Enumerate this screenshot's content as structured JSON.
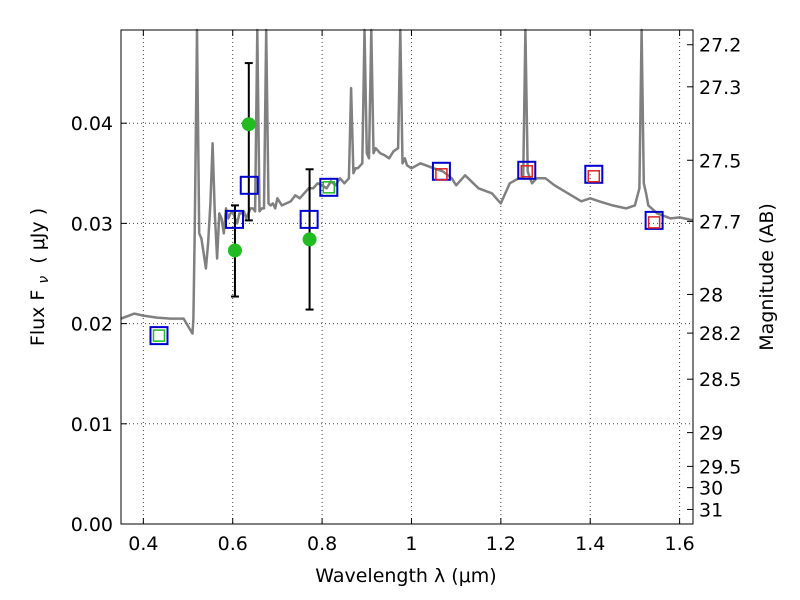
{
  "chart_data": {
    "type": "line",
    "xlabel": "Wavelength  λ (μm)",
    "ylabel": "Flux  F",
    "ylabel_sub": "ν",
    "ylabel_unit": "( μJy )",
    "y2label": "Magnitude (AB)",
    "xlim": [
      0.35,
      1.63
    ],
    "ylim": [
      0.0,
      0.0493
    ],
    "grid": true,
    "x_ticks": [
      {
        "v": 0.4,
        "label": "0.4"
      },
      {
        "v": 0.6,
        "label": "0.6"
      },
      {
        "v": 0.8,
        "label": "0.8"
      },
      {
        "v": 1.0,
        "label": "1"
      },
      {
        "v": 1.2,
        "label": "1.2"
      },
      {
        "v": 1.4,
        "label": "1.4"
      },
      {
        "v": 1.6,
        "label": "1.6"
      }
    ],
    "y_ticks": [
      {
        "v": 0.0,
        "label": "0.00"
      },
      {
        "v": 0.01,
        "label": "0.01"
      },
      {
        "v": 0.02,
        "label": "0.02"
      },
      {
        "v": 0.03,
        "label": "0.03"
      },
      {
        "v": 0.04,
        "label": "0.04"
      }
    ],
    "mag_ticks": [
      {
        "v": 0.04783,
        "label": "27.2"
      },
      {
        "v": 0.04363,
        "label": "27.3"
      },
      {
        "v": 0.0363,
        "label": "27.5"
      },
      {
        "v": 0.0302,
        "label": "27.7"
      },
      {
        "v": 0.02291,
        "label": "28"
      },
      {
        "v": 0.01905,
        "label": "28.2"
      },
      {
        "v": 0.01445,
        "label": "28.5"
      },
      {
        "v": 0.00912,
        "label": "29"
      },
      {
        "v": 0.00575,
        "label": "29.5"
      },
      {
        "v": 0.00363,
        "label": "30"
      },
      {
        "v": 0.00145,
        "label": "31"
      }
    ],
    "series": [
      {
        "type": "line",
        "color": "#808080",
        "x": [
          0.35,
          0.38,
          0.4,
          0.43,
          0.46,
          0.49,
          0.51,
          0.512,
          0.515,
          0.52,
          0.525,
          0.53,
          0.535,
          0.54,
          0.545,
          0.55,
          0.555,
          0.56,
          0.565,
          0.57,
          0.575,
          0.58,
          0.585,
          0.59,
          0.595,
          0.6,
          0.605,
          0.61,
          0.615,
          0.62,
          0.625,
          0.63,
          0.635,
          0.64,
          0.645,
          0.65,
          0.655,
          0.66,
          0.665,
          0.67,
          0.675,
          0.68,
          0.685,
          0.69,
          0.695,
          0.7,
          0.71,
          0.72,
          0.73,
          0.74,
          0.75,
          0.76,
          0.77,
          0.78,
          0.79,
          0.8,
          0.81,
          0.82,
          0.83,
          0.84,
          0.85,
          0.86,
          0.865,
          0.87,
          0.875,
          0.88,
          0.89,
          0.895,
          0.9,
          0.905,
          0.91,
          0.915,
          0.92,
          0.93,
          0.94,
          0.95,
          0.96,
          0.97,
          0.975,
          0.98,
          0.985,
          0.99,
          1.0,
          1.02,
          1.05,
          1.07,
          1.09,
          1.1,
          1.12,
          1.15,
          1.18,
          1.2,
          1.22,
          1.24,
          1.25,
          1.255,
          1.26,
          1.265,
          1.27,
          1.28,
          1.3,
          1.32,
          1.35,
          1.38,
          1.4,
          1.42,
          1.45,
          1.48,
          1.5,
          1.51,
          1.515,
          1.52,
          1.525,
          1.53,
          1.55,
          1.58,
          1.6,
          1.63
        ],
        "y": [
          0.0205,
          0.021,
          0.0208,
          0.0206,
          0.0205,
          0.0205,
          0.019,
          0.0205,
          0.029,
          0.0493,
          0.029,
          0.0285,
          0.027,
          0.0255,
          0.028,
          0.032,
          0.038,
          0.031,
          0.0265,
          0.031,
          0.0305,
          0.029,
          0.0315,
          0.0305,
          0.031,
          0.0312,
          0.0305,
          0.03,
          0.031,
          0.031,
          0.0312,
          0.0305,
          0.031,
          0.0315,
          0.0315,
          0.0312,
          0.0493,
          0.0312,
          0.0315,
          0.0315,
          0.0493,
          0.032,
          0.0318,
          0.032,
          0.0315,
          0.0325,
          0.0318,
          0.032,
          0.0322,
          0.0328,
          0.0325,
          0.033,
          0.0335,
          0.0335,
          0.034,
          0.0338,
          0.0335,
          0.0342,
          0.0338,
          0.0345,
          0.034,
          0.0345,
          0.0435,
          0.035,
          0.0355,
          0.0355,
          0.036,
          0.0493,
          0.037,
          0.0365,
          0.0493,
          0.037,
          0.0375,
          0.037,
          0.0368,
          0.0365,
          0.0372,
          0.0375,
          0.0493,
          0.036,
          0.0365,
          0.0358,
          0.0355,
          0.036,
          0.0355,
          0.0352,
          0.0345,
          0.0338,
          0.0348,
          0.0335,
          0.033,
          0.032,
          0.034,
          0.0345,
          0.0345,
          0.0493,
          0.0352,
          0.0345,
          0.034,
          0.0345,
          0.0345,
          0.0338,
          0.033,
          0.0322,
          0.0325,
          0.0322,
          0.0318,
          0.0315,
          0.0318,
          0.0335,
          0.0493,
          0.034,
          0.033,
          0.0318,
          0.031,
          0.0305,
          0.0306,
          0.0303
        ]
      },
      {
        "type": "scatter",
        "marker": "circle",
        "color": "#22bb22",
        "x": [
          0.605,
          0.636,
          0.772
        ],
        "y": [
          0.0273,
          0.0399,
          0.0284
        ],
        "yerr_low": [
          0.0,
          0.0,
          0.0
        ],
        "yerr_high": [
          0.0,
          0.0,
          0.0
        ]
      },
      {
        "type": "errorbar",
        "color": "#000000",
        "x": [
          0.605,
          0.636,
          0.772
        ],
        "y_low": [
          0.0227,
          0.0303,
          0.0214
        ],
        "y_high": [
          0.0318,
          0.046,
          0.0354
        ]
      },
      {
        "type": "scatter",
        "marker": "open-square",
        "color": "#0000cc",
        "x": [
          0.435,
          0.604,
          0.637,
          0.771,
          0.815,
          1.067,
          1.258,
          1.408,
          1.543
        ],
        "y": [
          0.0188,
          0.0304,
          0.0338,
          0.0304,
          0.0336,
          0.0352,
          0.0353,
          0.0349,
          0.0303
        ]
      },
      {
        "type": "scatter",
        "marker": "small-square",
        "color": "#22bb22",
        "x": [
          0.435,
          0.815
        ],
        "y": [
          0.0188,
          0.0336
        ]
      },
      {
        "type": "scatter",
        "marker": "small-square",
        "color": "#dd2222",
        "x": [
          1.067,
          1.258,
          1.408,
          1.543
        ],
        "y": [
          0.0349,
          0.0352,
          0.0347,
          0.0301
        ]
      }
    ]
  }
}
